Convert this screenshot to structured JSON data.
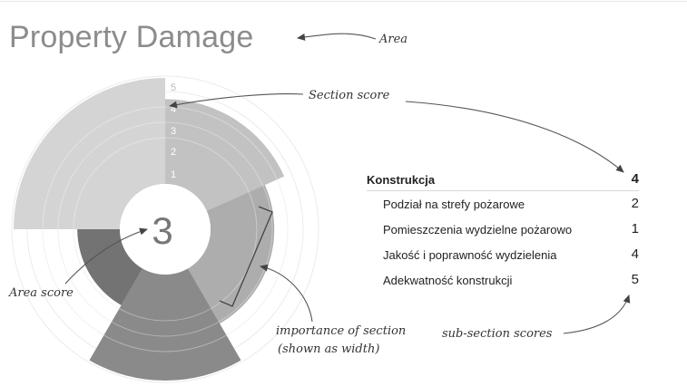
{
  "title": "Property Damage",
  "area_score": "3",
  "scale_labels": [
    "1",
    "2",
    "3",
    "4",
    "5"
  ],
  "annotations": {
    "area": "Area",
    "section_score": "Section score",
    "area_score": "Area score",
    "importance_line1": "importance of section",
    "importance_line2": "(shown as width)",
    "subsection_scores": "sub-section scores"
  },
  "section": {
    "name": "Konstrukcja",
    "score": "4",
    "subsections": [
      {
        "label": "Podział na strefy pożarowe",
        "score": "2"
      },
      {
        "label": "Pomieszczenia wydzielne pożarowo",
        "score": "1"
      },
      {
        "label": "Jakość i poprawność wydzielenia",
        "score": "4"
      },
      {
        "label": "Adekwatność konstrukcji",
        "score": "5"
      }
    ]
  },
  "chart_data": {
    "type": "radial-sectors",
    "max_score": 5,
    "sectors": [
      {
        "score": 4,
        "color": "#c2c2c2"
      },
      {
        "score": 3,
        "color": "#adadad"
      },
      {
        "score": 5,
        "color": "#8a8a8a"
      },
      {
        "score": 2,
        "color": "#737373"
      },
      {
        "score": 5,
        "color": "#d4d4d4"
      }
    ]
  }
}
